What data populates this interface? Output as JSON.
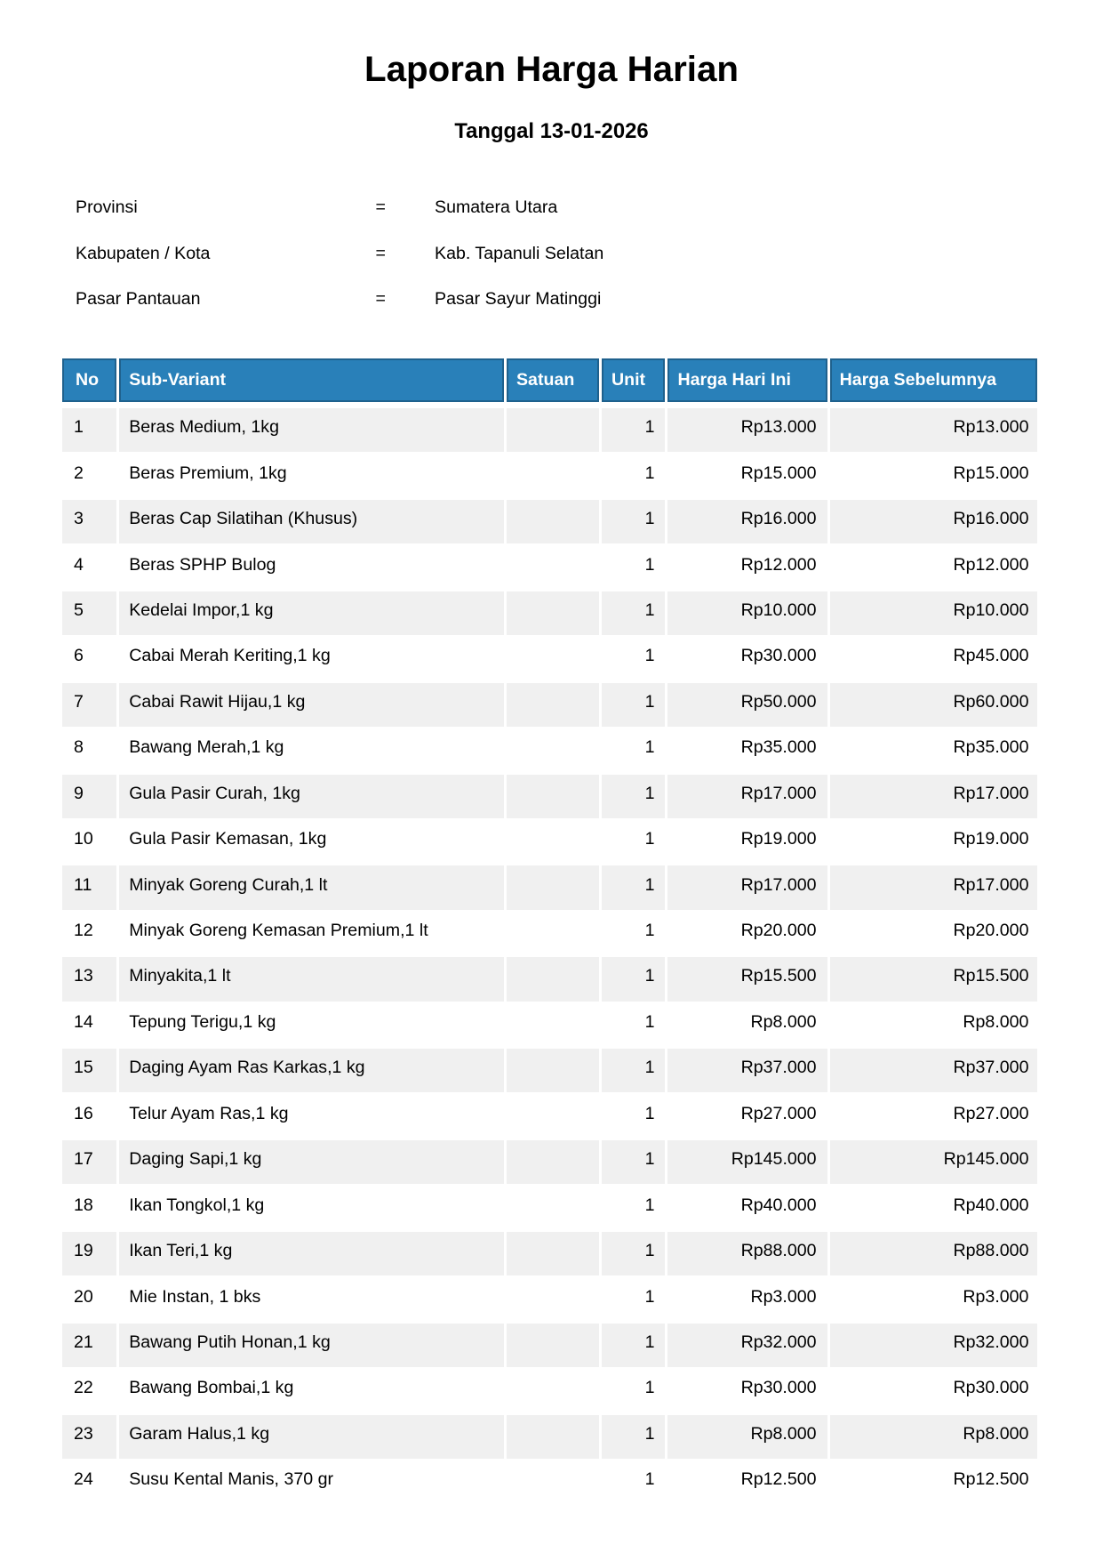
{
  "report": {
    "title": "Laporan Harga Harian",
    "subtitle": "Tanggal 13-01-2026",
    "meta": [
      {
        "label": "Provinsi",
        "separator": "=",
        "value": "Sumatera Utara"
      },
      {
        "label": "Kabupaten / Kota",
        "separator": "=",
        "value": "Kab. Tapanuli Selatan"
      },
      {
        "label": "Pasar Pantauan",
        "separator": "=",
        "value": "Pasar Sayur Matinggi"
      }
    ]
  },
  "table": {
    "columns": [
      "No",
      "Sub-Variant",
      "Satuan",
      "Unit",
      "Harga Hari Ini",
      "Harga Sebelumnya"
    ],
    "rows": [
      {
        "no": "1",
        "sub_variant": "Beras Medium, 1kg",
        "satuan": "",
        "unit": "1",
        "harga_hari_ini": "Rp13.000",
        "harga_sebelumnya": "Rp13.000"
      },
      {
        "no": "2",
        "sub_variant": "Beras Premium, 1kg",
        "satuan": "",
        "unit": "1",
        "harga_hari_ini": "Rp15.000",
        "harga_sebelumnya": "Rp15.000"
      },
      {
        "no": "3",
        "sub_variant": "Beras Cap Silatihan (Khusus)",
        "satuan": "",
        "unit": "1",
        "harga_hari_ini": "Rp16.000",
        "harga_sebelumnya": "Rp16.000"
      },
      {
        "no": "4",
        "sub_variant": "Beras SPHP Bulog",
        "satuan": "",
        "unit": "1",
        "harga_hari_ini": "Rp12.000",
        "harga_sebelumnya": "Rp12.000"
      },
      {
        "no": "5",
        "sub_variant": "Kedelai Impor,1 kg",
        "satuan": "",
        "unit": "1",
        "harga_hari_ini": "Rp10.000",
        "harga_sebelumnya": "Rp10.000"
      },
      {
        "no": "6",
        "sub_variant": "Cabai Merah Keriting,1 kg",
        "satuan": "",
        "unit": "1",
        "harga_hari_ini": "Rp30.000",
        "harga_sebelumnya": "Rp45.000"
      },
      {
        "no": "7",
        "sub_variant": "Cabai Rawit Hijau,1 kg",
        "satuan": "",
        "unit": "1",
        "harga_hari_ini": "Rp50.000",
        "harga_sebelumnya": "Rp60.000"
      },
      {
        "no": "8",
        "sub_variant": "Bawang Merah,1 kg",
        "satuan": "",
        "unit": "1",
        "harga_hari_ini": "Rp35.000",
        "harga_sebelumnya": "Rp35.000"
      },
      {
        "no": "9",
        "sub_variant": "Gula Pasir Curah, 1kg",
        "satuan": "",
        "unit": "1",
        "harga_hari_ini": "Rp17.000",
        "harga_sebelumnya": "Rp17.000"
      },
      {
        "no": "10",
        "sub_variant": "Gula Pasir Kemasan, 1kg",
        "satuan": "",
        "unit": "1",
        "harga_hari_ini": "Rp19.000",
        "harga_sebelumnya": "Rp19.000"
      },
      {
        "no": "11",
        "sub_variant": "Minyak Goreng Curah,1 lt",
        "satuan": "",
        "unit": "1",
        "harga_hari_ini": "Rp17.000",
        "harga_sebelumnya": "Rp17.000"
      },
      {
        "no": "12",
        "sub_variant": "Minyak Goreng Kemasan Premium,1 lt",
        "satuan": "",
        "unit": "1",
        "harga_hari_ini": "Rp20.000",
        "harga_sebelumnya": "Rp20.000"
      },
      {
        "no": "13",
        "sub_variant": "Minyakita,1 lt",
        "satuan": "",
        "unit": "1",
        "harga_hari_ini": "Rp15.500",
        "harga_sebelumnya": "Rp15.500"
      },
      {
        "no": "14",
        "sub_variant": "Tepung Terigu,1 kg",
        "satuan": "",
        "unit": "1",
        "harga_hari_ini": "Rp8.000",
        "harga_sebelumnya": "Rp8.000"
      },
      {
        "no": "15",
        "sub_variant": "Daging Ayam Ras Karkas,1 kg",
        "satuan": "",
        "unit": "1",
        "harga_hari_ini": "Rp37.000",
        "harga_sebelumnya": "Rp37.000"
      },
      {
        "no": "16",
        "sub_variant": "Telur Ayam Ras,1 kg",
        "satuan": "",
        "unit": "1",
        "harga_hari_ini": "Rp27.000",
        "harga_sebelumnya": "Rp27.000"
      },
      {
        "no": "17",
        "sub_variant": "Daging Sapi,1 kg",
        "satuan": "",
        "unit": "1",
        "harga_hari_ini": "Rp145.000",
        "harga_sebelumnya": "Rp145.000"
      },
      {
        "no": "18",
        "sub_variant": "Ikan Tongkol,1 kg",
        "satuan": "",
        "unit": "1",
        "harga_hari_ini": "Rp40.000",
        "harga_sebelumnya": "Rp40.000"
      },
      {
        "no": "19",
        "sub_variant": "Ikan Teri,1 kg",
        "satuan": "",
        "unit": "1",
        "harga_hari_ini": "Rp88.000",
        "harga_sebelumnya": "Rp88.000"
      },
      {
        "no": "20",
        "sub_variant": "Mie Instan, 1 bks",
        "satuan": "",
        "unit": "1",
        "harga_hari_ini": "Rp3.000",
        "harga_sebelumnya": "Rp3.000"
      },
      {
        "no": "21",
        "sub_variant": "Bawang Putih Honan,1 kg",
        "satuan": "",
        "unit": "1",
        "harga_hari_ini": "Rp32.000",
        "harga_sebelumnya": "Rp32.000"
      },
      {
        "no": "22",
        "sub_variant": "Bawang Bombai,1 kg",
        "satuan": "",
        "unit": "1",
        "harga_hari_ini": "Rp30.000",
        "harga_sebelumnya": "Rp30.000"
      },
      {
        "no": "23",
        "sub_variant": "Garam Halus,1 kg",
        "satuan": "",
        "unit": "1",
        "harga_hari_ini": "Rp8.000",
        "harga_sebelumnya": "Rp8.000"
      },
      {
        "no": "24",
        "sub_variant": "Susu Kental Manis, 370 gr",
        "satuan": "",
        "unit": "1",
        "harga_hari_ini": "Rp12.500",
        "harga_sebelumnya": "Rp12.500"
      }
    ]
  },
  "colors": {
    "header_bg": "#2980b9",
    "header_border": "#1f618d",
    "stripe": "#f0f0f0"
  }
}
